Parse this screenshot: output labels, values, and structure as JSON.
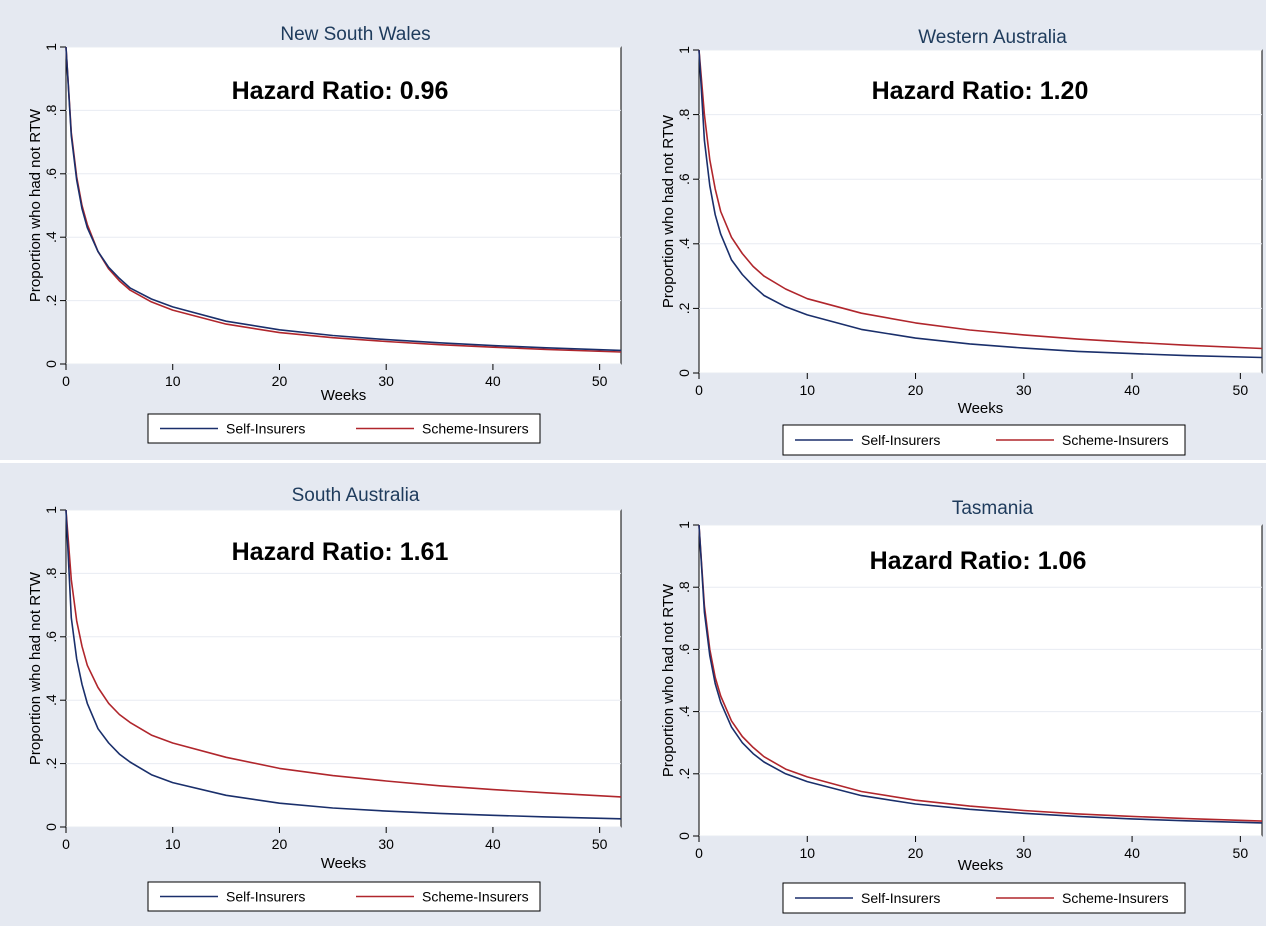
{
  "chart_data": [
    {
      "type": "line",
      "title": "New South Wales",
      "annotation": "Hazard Ratio: 0.96",
      "xlabel": "Weeks",
      "ylabel": "Proportion who had not RTW",
      "xlim": [
        0,
        52
      ],
      "ylim": [
        0,
        1
      ],
      "x_ticks": [
        0,
        10,
        20,
        30,
        40,
        50
      ],
      "y_ticks": [
        0,
        0.2,
        0.4,
        0.6,
        0.8,
        1
      ],
      "y_tick_labels": [
        "0",
        ".2",
        ".4",
        ".6",
        ".8",
        "1"
      ],
      "grid": true,
      "legend_position": "bottom",
      "x": [
        0,
        0.5,
        1,
        1.5,
        2,
        3,
        4,
        5,
        6,
        8,
        10,
        15,
        20,
        25,
        30,
        35,
        40,
        45,
        52
      ],
      "series": [
        {
          "name": "Self-Insurers",
          "color": "#1a2f6b",
          "values": [
            1.0,
            0.72,
            0.58,
            0.49,
            0.43,
            0.355,
            0.305,
            0.27,
            0.24,
            0.205,
            0.18,
            0.135,
            0.108,
            0.09,
            0.077,
            0.067,
            0.058,
            0.051,
            0.043
          ]
        },
        {
          "name": "Scheme-Insurers",
          "color": "#b0262c",
          "values": [
            1.0,
            0.73,
            0.59,
            0.5,
            0.44,
            0.355,
            0.3,
            0.262,
            0.233,
            0.196,
            0.17,
            0.126,
            0.099,
            0.083,
            0.071,
            0.061,
            0.053,
            0.046,
            0.038
          ]
        }
      ]
    },
    {
      "type": "line",
      "title": "Western Australia",
      "annotation": "Hazard Ratio: 1.20",
      "xlabel": "Weeks",
      "ylabel": "Proportion who had not RTW",
      "xlim": [
        0,
        52
      ],
      "ylim": [
        0,
        1
      ],
      "x_ticks": [
        0,
        10,
        20,
        30,
        40,
        50
      ],
      "y_ticks": [
        0,
        0.2,
        0.4,
        0.6,
        0.8,
        1
      ],
      "y_tick_labels": [
        "0",
        ".2",
        ".4",
        ".6",
        ".8",
        "1"
      ],
      "grid": true,
      "legend_position": "bottom",
      "x": [
        0,
        0.5,
        1,
        1.5,
        2,
        3,
        4,
        5,
        6,
        8,
        10,
        15,
        20,
        25,
        30,
        35,
        40,
        45,
        52
      ],
      "series": [
        {
          "name": "Self-Insurers",
          "color": "#1a2f6b",
          "values": [
            1.0,
            0.72,
            0.58,
            0.49,
            0.43,
            0.35,
            0.305,
            0.27,
            0.24,
            0.205,
            0.18,
            0.135,
            0.108,
            0.09,
            0.077,
            0.067,
            0.06,
            0.054,
            0.048
          ]
        },
        {
          "name": "Scheme-Insurers",
          "color": "#b0262c",
          "values": [
            1.0,
            0.8,
            0.66,
            0.57,
            0.5,
            0.42,
            0.37,
            0.33,
            0.3,
            0.26,
            0.23,
            0.185,
            0.155,
            0.133,
            0.118,
            0.105,
            0.095,
            0.086,
            0.076
          ]
        }
      ]
    },
    {
      "type": "line",
      "title": "South Australia",
      "annotation": "Hazard Ratio: 1.61",
      "xlabel": "Weeks",
      "ylabel": "Proportion who had not RTW",
      "xlim": [
        0,
        52
      ],
      "ylim": [
        0,
        1
      ],
      "x_ticks": [
        0,
        10,
        20,
        30,
        40,
        50
      ],
      "y_ticks": [
        0,
        0.2,
        0.4,
        0.6,
        0.8,
        1
      ],
      "y_tick_labels": [
        "0",
        ".2",
        ".4",
        ".6",
        ".8",
        "1"
      ],
      "grid": true,
      "legend_position": "bottom",
      "x": [
        0,
        0.5,
        1,
        1.5,
        2,
        3,
        4,
        5,
        6,
        8,
        10,
        15,
        20,
        25,
        30,
        35,
        40,
        45,
        52
      ],
      "series": [
        {
          "name": "Self-Insurers",
          "color": "#1a2f6b",
          "values": [
            1.0,
            0.66,
            0.53,
            0.45,
            0.39,
            0.31,
            0.265,
            0.23,
            0.205,
            0.165,
            0.14,
            0.1,
            0.075,
            0.06,
            0.05,
            0.043,
            0.037,
            0.032,
            0.026
          ]
        },
        {
          "name": "Scheme-Insurers",
          "color": "#b0262c",
          "values": [
            1.0,
            0.78,
            0.65,
            0.57,
            0.51,
            0.44,
            0.39,
            0.355,
            0.33,
            0.29,
            0.265,
            0.22,
            0.185,
            0.162,
            0.145,
            0.13,
            0.118,
            0.108,
            0.095
          ]
        }
      ]
    },
    {
      "type": "line",
      "title": "Tasmania",
      "annotation": "Hazard Ratio: 1.06",
      "xlabel": "Weeks",
      "ylabel": "Proportion who had not RTW",
      "xlim": [
        0,
        52
      ],
      "ylim": [
        0,
        1
      ],
      "x_ticks": [
        0,
        10,
        20,
        30,
        40,
        50
      ],
      "y_ticks": [
        0,
        0.2,
        0.4,
        0.6,
        0.8,
        1
      ],
      "y_tick_labels": [
        "0",
        ".2",
        ".4",
        ".6",
        ".8",
        "1"
      ],
      "grid": true,
      "legend_position": "bottom",
      "x": [
        0,
        0.5,
        1,
        1.5,
        2,
        3,
        4,
        5,
        6,
        8,
        10,
        15,
        20,
        25,
        30,
        35,
        40,
        45,
        52
      ],
      "series": [
        {
          "name": "Self-Insurers",
          "color": "#1a2f6b",
          "values": [
            1.0,
            0.72,
            0.58,
            0.49,
            0.43,
            0.35,
            0.3,
            0.265,
            0.238,
            0.2,
            0.175,
            0.13,
            0.103,
            0.086,
            0.073,
            0.063,
            0.055,
            0.049,
            0.042
          ]
        },
        {
          "name": "Scheme-Insurers",
          "color": "#b0262c",
          "values": [
            1.0,
            0.74,
            0.6,
            0.51,
            0.45,
            0.37,
            0.32,
            0.285,
            0.255,
            0.215,
            0.19,
            0.143,
            0.115,
            0.096,
            0.082,
            0.071,
            0.063,
            0.056,
            0.048
          ]
        }
      ]
    }
  ]
}
